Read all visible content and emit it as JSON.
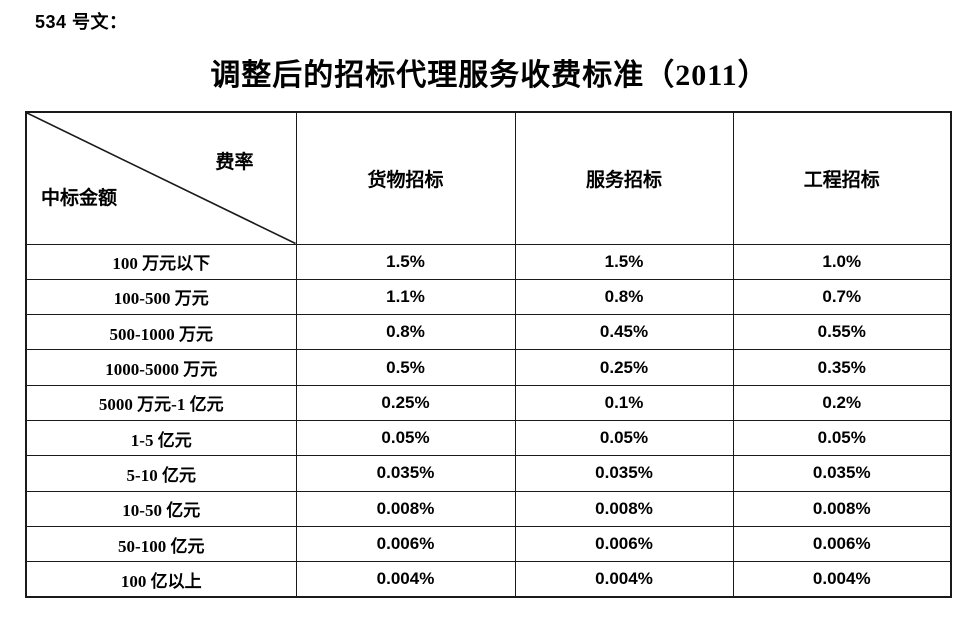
{
  "doc": {
    "ref_label": "534 号文：",
    "title": "调整后的招标代理服务收费标准（2011）"
  },
  "table": {
    "corner": {
      "top_right": "费率",
      "bottom_left": "中标金额"
    },
    "columns": [
      "货物招标",
      "服务招标",
      "工程招标"
    ],
    "rows": [
      {
        "label": "100 万元以下",
        "values": [
          "1.5%",
          "1.5%",
          "1.0%"
        ]
      },
      {
        "label": "100-500 万元",
        "values": [
          "1.1%",
          "0.8%",
          "0.7%"
        ]
      },
      {
        "label": "500-1000 万元",
        "values": [
          "0.8%",
          "0.45%",
          "0.55%"
        ]
      },
      {
        "label": "1000-5000 万元",
        "values": [
          "0.5%",
          "0.25%",
          "0.35%"
        ]
      },
      {
        "label": "5000 万元-1 亿元",
        "values": [
          "0.25%",
          "0.1%",
          "0.2%"
        ]
      },
      {
        "label": "1-5 亿元",
        "values": [
          "0.05%",
          "0.05%",
          "0.05%"
        ]
      },
      {
        "label": "5-10 亿元",
        "values": [
          "0.035%",
          "0.035%",
          "0.035%"
        ]
      },
      {
        "label": "10-50 亿元",
        "values": [
          "0.008%",
          "0.008%",
          "0.008%"
        ]
      },
      {
        "label": "50-100 亿元",
        "values": [
          "0.006%",
          "0.006%",
          "0.006%"
        ]
      },
      {
        "label": "100 亿以上",
        "values": [
          "0.004%",
          "0.004%",
          "0.004%"
        ]
      }
    ]
  },
  "colors": {
    "text": "#000000",
    "border": "#1a1a1a",
    "background": "#ffffff"
  }
}
